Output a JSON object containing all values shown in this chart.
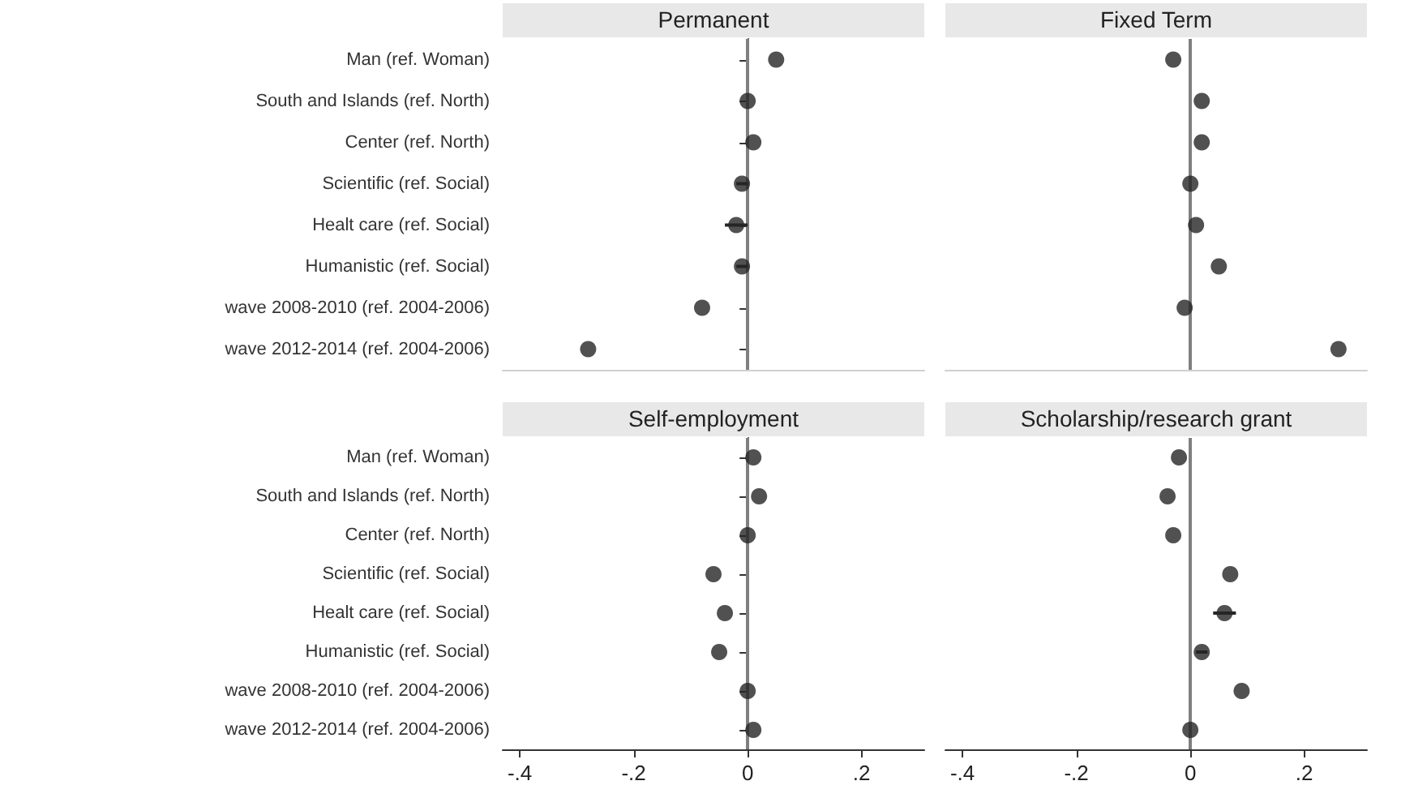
{
  "chart_data": [
    {
      "type": "scatter",
      "title": "Permanent",
      "orientation": "horizontal",
      "categories": [
        "Man (ref. Woman)",
        "South and Islands (ref. North)",
        "Center (ref. North)",
        "Scientific (ref. Social)",
        "Healt care (ref. Social)",
        "Humanistic (ref. Social)",
        "wave 2008-2010 (ref. 2004-2006)",
        "wave 2012-2014 (ref. 2004-2006)"
      ],
      "values": [
        0.05,
        0,
        0.01,
        -0.01,
        -0.02,
        -0.01,
        -0.08,
        -0.28
      ],
      "errors": [
        null,
        null,
        null,
        0.01,
        0.02,
        0.01,
        null,
        null
      ],
      "color": "#262626",
      "marker": "circle",
      "xlim": [
        -0.43,
        0.31
      ],
      "tick_labels": "y",
      "ref_lines": [
        {
          "axis": "x",
          "value": 0,
          "color": "#7f7f7f"
        }
      ]
    },
    {
      "type": "scatter",
      "title": "Fixed Term",
      "orientation": "horizontal",
      "values": [
        -0.03,
        0.02,
        0.02,
        0,
        0.01,
        0.05,
        -0.01,
        0.26
      ],
      "color": "#262626",
      "marker": "circle",
      "xlim": [
        -0.43,
        0.31
      ],
      "tick_labels": false,
      "ref_lines": [
        {
          "axis": "x",
          "value": 0,
          "color": "#7f7f7f"
        }
      ]
    },
    {
      "type": "scatter",
      "title": "Self-employment",
      "orientation": "horizontal",
      "categories": [
        "Man (ref. Woman)",
        "South and Islands (ref. North)",
        "Center (ref. North)",
        "Scientific (ref. Social)",
        "Healt care (ref. Social)",
        "Humanistic (ref. Social)",
        "wave 2008-2010 (ref. 2004-2006)",
        "wave 2012-2014 (ref. 2004-2006)"
      ],
      "values": [
        0.01,
        0.02,
        0,
        -0.06,
        -0.04,
        -0.05,
        0,
        0.01
      ],
      "color": "#262626",
      "marker": "circle",
      "xlim": [
        -0.43,
        0.31
      ],
      "xticks": [
        {
          "value": -0.4,
          "label": "-.4"
        },
        {
          "value": -0.2,
          "label": "-.2"
        },
        0,
        {
          "value": 0.2,
          "label": ".2"
        }
      ],
      "ref_lines": [
        {
          "axis": "x",
          "value": 0,
          "color": "#7f7f7f"
        }
      ]
    },
    {
      "type": "scatter",
      "title": "Scholarship/research grant",
      "orientation": "horizontal",
      "values": [
        -0.02,
        -0.04,
        -0.03,
        0.07,
        0.06,
        0.02,
        0.09,
        0
      ],
      "errors": [
        null,
        null,
        null,
        null,
        0.02,
        0.01,
        null,
        null
      ],
      "color": "#262626",
      "marker": "circle",
      "xlim": [
        -0.43,
        0.31
      ],
      "xticks": [
        {
          "value": -0.4,
          "label": "-.4"
        },
        {
          "value": -0.2,
          "label": "-.2"
        },
        0,
        {
          "value": 0.2,
          "label": ".2"
        }
      ],
      "tick_labels": "x",
      "ref_lines": [
        {
          "axis": "x",
          "value": 0,
          "color": "#7f7f7f"
        }
      ]
    }
  ]
}
